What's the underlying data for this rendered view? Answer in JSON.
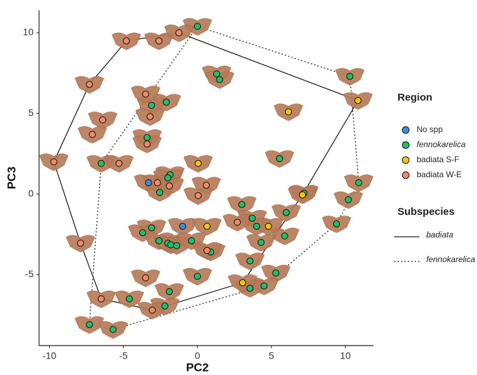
{
  "chart_data": {
    "type": "scatter",
    "x_label": "PC2",
    "y_label": "PC3",
    "xlim": [
      -10.7,
      11.9
    ],
    "ylim": [
      -9.4,
      11.4
    ],
    "xticks": [
      -10,
      -5,
      0,
      5,
      10
    ],
    "yticks": [
      -5,
      0,
      5,
      10
    ],
    "legend_title": "Region",
    "hull_legend_title": "Subspecies",
    "series": [
      {
        "name": "No spp",
        "color": "#3a8fd9",
        "x": [
          -3.3,
          -1.0
        ],
        "y": [
          0.7,
          -2.0
        ]
      },
      {
        "name": "fennokarelica",
        "color": "#1fbf6a",
        "x": [
          0.0,
          1.3,
          1.5,
          10.3,
          -3.1,
          -2.1,
          -3.4,
          -6.5,
          -1.85,
          -2.0,
          -2.55,
          5.55,
          10.9,
          10.2,
          7.2,
          6.0,
          3.0,
          3.7,
          4.0,
          5.9,
          4.3,
          9.4,
          -3.1,
          -3.7,
          -2.6,
          -2.0,
          -1.8,
          -1.4,
          -0.4,
          0.9,
          3.55,
          5.3,
          4.5,
          3.55,
          0.0,
          -1.9,
          -2.2,
          -4.6,
          -7.3,
          -5.7
        ],
        "y": [
          10.4,
          7.45,
          7.1,
          7.3,
          5.5,
          5.7,
          3.5,
          1.9,
          1.2,
          1.0,
          0.1,
          2.2,
          0.7,
          -0.35,
          0.05,
          -1.15,
          -0.65,
          -1.5,
          -2.0,
          -2.6,
          -3.0,
          -1.85,
          -2.1,
          -2.4,
          -2.9,
          -3.05,
          -3.15,
          -3.2,
          -2.9,
          -3.6,
          -4.15,
          -4.9,
          -5.7,
          -5.85,
          -5.1,
          -6.05,
          -6.95,
          -6.5,
          -8.1,
          -8.4
        ]
      },
      {
        "name": "badiata S-F",
        "color": "#f2c418",
        "x": [
          6.15,
          10.85,
          0.05,
          7.1,
          0.65,
          4.8,
          3.05
        ],
        "y": [
          5.1,
          5.8,
          1.9,
          -0.05,
          -2.0,
          -2.0,
          -5.5
        ]
      },
      {
        "name": "badiata W-E",
        "color": "#f08a68",
        "x": [
          -4.8,
          -2.6,
          -1.25,
          -7.3,
          -3.5,
          -6.4,
          -7.1,
          -3.2,
          -3.4,
          -9.7,
          -5.3,
          -2.7,
          -1.9,
          0.6,
          0.05,
          -7.9,
          -3.5,
          -6.5,
          -3.05,
          2.7,
          0.65
        ],
        "y": [
          9.5,
          9.5,
          10.0,
          6.8,
          6.2,
          4.6,
          3.7,
          4.8,
          3.1,
          2.0,
          1.9,
          0.7,
          0.5,
          0.55,
          -0.1,
          -3.05,
          -5.2,
          -6.5,
          -7.2,
          -1.75,
          -3.5
        ]
      }
    ],
    "hulls": [
      {
        "name": "badiata",
        "style": "solid",
        "series": [
          2,
          3
        ]
      },
      {
        "name": "fennokarelica",
        "style": "dotted",
        "series": [
          1
        ]
      }
    ]
  }
}
